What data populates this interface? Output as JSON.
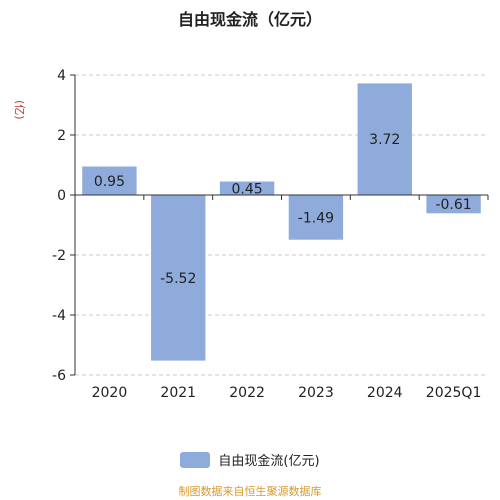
{
  "chart_data": {
    "type": "bar",
    "title": "自由现金流（亿元）",
    "ylabel": "(亿)",
    "categories": [
      "2020",
      "2021",
      "2022",
      "2023",
      "2024",
      "2025Q1"
    ],
    "series": [
      {
        "name": "自由现金流(亿元)",
        "values": [
          0.95,
          -5.52,
          0.45,
          -1.49,
          3.72,
          -0.61
        ]
      }
    ],
    "ylim": [
      -6,
      4
    ],
    "yticks": [
      -6,
      -4,
      -2,
      0,
      2,
      4
    ],
    "grid": true,
    "legend": "bottom"
  },
  "source_note": "制图数据来自恒生聚源数据库",
  "colors": {
    "bar": "#8fabdb",
    "grid": "#cccccc",
    "source_note": "#d99a2b",
    "ylabel": "#c0392b"
  }
}
